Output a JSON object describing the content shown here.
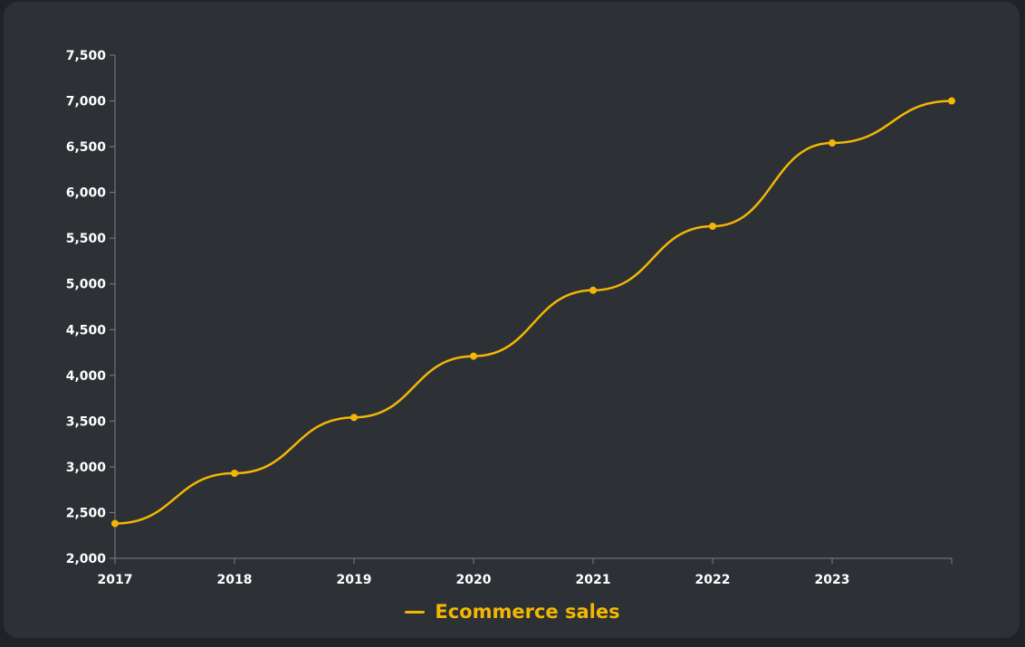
{
  "chart_data": {
    "type": "line",
    "smooth": true,
    "title": "",
    "xlabel": "",
    "ylabel": "",
    "x": [
      "2017",
      "2018",
      "2019",
      "2020",
      "2021",
      "2022",
      "2023",
      ""
    ],
    "ylim": [
      2000,
      7500
    ],
    "y_ticks": [
      "2,000",
      "2,500",
      "3,000",
      "3,500",
      "4,000",
      "4,500",
      "5,000",
      "5,500",
      "6,000",
      "6,500",
      "7,000",
      "7,500"
    ],
    "y_tick_values": [
      2000,
      2500,
      3000,
      3500,
      4000,
      4500,
      5000,
      5500,
      6000,
      6500,
      7000,
      7500
    ],
    "grid": false,
    "legend_position": "bottom",
    "series": [
      {
        "name": "Ecommerce sales",
        "color": "#f2b705",
        "values": [
          2380,
          2930,
          3540,
          4210,
          4930,
          5630,
          6540,
          7000
        ]
      }
    ]
  },
  "colors": {
    "background": "#2d3135",
    "axis": "#7b8086",
    "text": "#ffffff",
    "accent": "#f2b705"
  }
}
